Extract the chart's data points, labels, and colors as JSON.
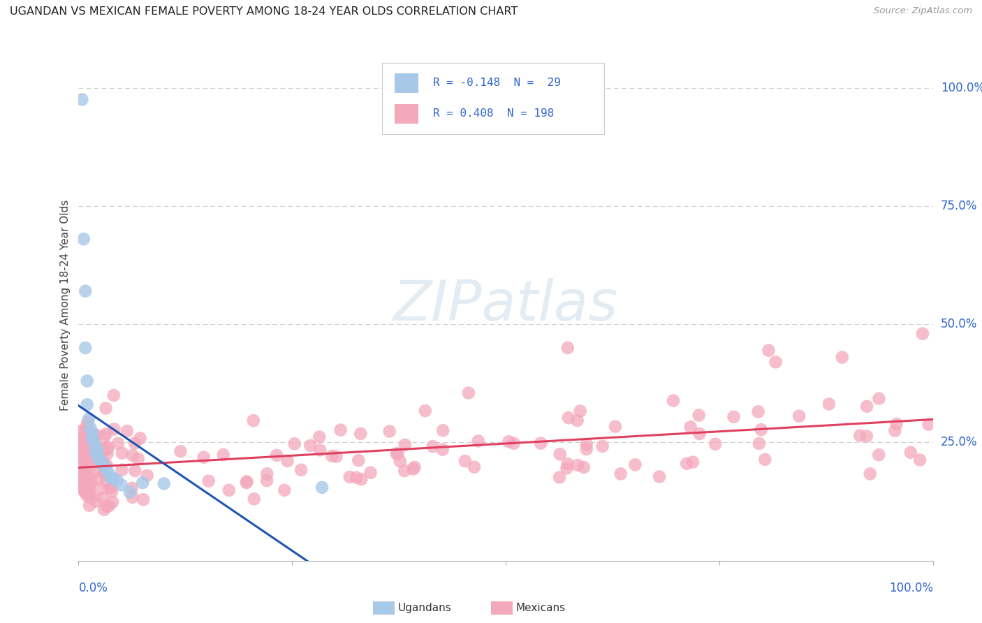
{
  "title": "UGANDAN VS MEXICAN FEMALE POVERTY AMONG 18-24 YEAR OLDS CORRELATION CHART",
  "source": "Source: ZipAtlas.com",
  "ylabel": "Female Poverty Among 18-24 Year Olds",
  "ytick_labels": [
    "100.0%",
    "75.0%",
    "50.0%",
    "25.0%"
  ],
  "ytick_values": [
    1.0,
    0.75,
    0.5,
    0.25
  ],
  "r_ugandan": -0.148,
  "n_ugandan": 29,
  "r_mexican": 0.408,
  "n_mexican": 198,
  "ugandan_color": "#a8c8e8",
  "mexican_color": "#f4a8bc",
  "ugandan_line_color": "#2055b0",
  "mexican_line_color": "#e04060",
  "background_color": "#ffffff",
  "xlim": [
    0.0,
    1.0
  ],
  "ylim": [
    0.0,
    1.08
  ],
  "grid_color": "#cccccc",
  "legend_box_color": "#dddddd",
  "legend_text_color": "#3366cc",
  "source_color": "#999999",
  "title_color": "#222222",
  "axis_label_color": "#444444",
  "tick_label_color": "#3366cc"
}
